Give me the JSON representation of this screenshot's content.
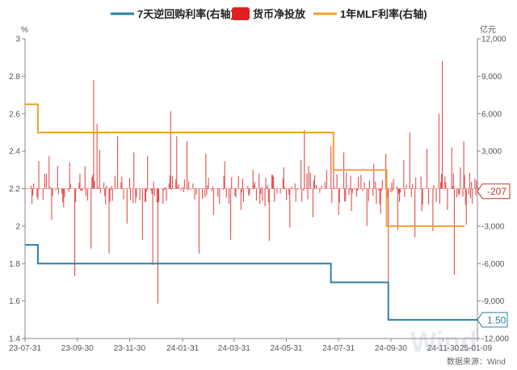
{
  "chart_data": {
    "type": "bar+line",
    "legend": [
      {
        "label": "7天逆回购利率(右轴)",
        "color": "#2e7fa8",
        "kind": "line"
      },
      {
        "label": "货币净投放",
        "color": "#e02020",
        "kind": "bar"
      },
      {
        "label": "1年MLF利率(右轴)",
        "color": "#f0a030",
        "kind": "line"
      }
    ],
    "left_axis": {
      "unit": "%",
      "ylim": [
        1.4,
        3.0
      ],
      "ticks": [
        "1.4",
        "1.6",
        "1.8",
        "2",
        "2.2",
        "2.4",
        "2.6",
        "2.8",
        "3"
      ]
    },
    "right_axis": {
      "unit": "亿元",
      "ylim": [
        -12000,
        12000
      ],
      "ticks": [
        "-12,000",
        "-9,000",
        "-6,000",
        "-3,000",
        "0",
        "3,000",
        "6,000",
        "9,000",
        "12,000"
      ]
    },
    "x_axis": {
      "start": "2023-07-31",
      "end": "2025-01-09",
      "tick_labels": [
        {
          "date": "2023-07-31",
          "label": "23-07-31"
        },
        {
          "date": "2023-09-30",
          "label": "23-09-30"
        },
        {
          "date": "2023-11-30",
          "label": "23-11-30"
        },
        {
          "date": "2024-01-31",
          "label": "24-01-31"
        },
        {
          "date": "2024-03-31",
          "label": "24-03-31"
        },
        {
          "date": "2024-05-31",
          "label": "24-05-31"
        },
        {
          "date": "2024-07-31",
          "label": "24-07-31"
        },
        {
          "date": "2024-09-30",
          "label": "24-09-30"
        },
        {
          "date": "2024-11-30",
          "label": "24-11-30"
        },
        {
          "date": "2025-01-09",
          "label": "25-01-09"
        }
      ]
    },
    "series": [
      {
        "name": "7天逆回购利率(右轴)",
        "axis": "left",
        "color": "#2e7fa8",
        "step_points": [
          {
            "date": "2023-07-31",
            "value": 1.9
          },
          {
            "date": "2023-08-15",
            "value": 1.8
          },
          {
            "date": "2024-07-22",
            "value": 1.7
          },
          {
            "date": "2024-09-27",
            "value": 1.5
          },
          {
            "date": "2025-01-09",
            "value": 1.5
          }
        ],
        "last_value_label": "1.50"
      },
      {
        "name": "1年MLF利率(右轴)",
        "axis": "left",
        "color": "#f0a030",
        "step_points": [
          {
            "date": "2023-07-31",
            "value": 2.65
          },
          {
            "date": "2023-08-15",
            "value": 2.5
          },
          {
            "date": "2024-07-25",
            "value": 2.3
          },
          {
            "date": "2024-09-25",
            "value": 2.0
          },
          {
            "date": "2024-12-25",
            "value": 2.0
          }
        ]
      },
      {
        "name": "货币净投放",
        "axis": "right",
        "color": "#e05050",
        "base_bars": [
          {
            "date": "2023-08-08",
            "value": -1200
          },
          {
            "date": "2023-08-16",
            "value": 2200
          },
          {
            "date": "2023-08-21",
            "value": -900
          },
          {
            "date": "2023-08-28",
            "value": 2600
          },
          {
            "date": "2023-08-31",
            "value": -2500
          },
          {
            "date": "2023-09-07",
            "value": 1800
          },
          {
            "date": "2023-09-14",
            "value": -1500
          },
          {
            "date": "2023-09-21",
            "value": 2100
          },
          {
            "date": "2023-09-27",
            "value": -7000
          },
          {
            "date": "2023-10-09",
            "value": 1800
          },
          {
            "date": "2023-10-16",
            "value": -4800
          },
          {
            "date": "2023-10-19",
            "value": 8700
          },
          {
            "date": "2023-10-23",
            "value": 5200
          },
          {
            "date": "2023-10-26",
            "value": 3100
          },
          {
            "date": "2023-11-06",
            "value": -5200
          },
          {
            "date": "2023-11-16",
            "value": 4200
          },
          {
            "date": "2023-11-27",
            "value": -2800
          },
          {
            "date": "2023-12-05",
            "value": 2900
          },
          {
            "date": "2023-12-15",
            "value": -4100
          },
          {
            "date": "2023-12-21",
            "value": 2600
          },
          {
            "date": "2023-12-27",
            "value": -6100
          },
          {
            "date": "2024-01-02",
            "value": -9200
          },
          {
            "date": "2024-01-17",
            "value": 6200
          },
          {
            "date": "2024-01-24",
            "value": 4200
          },
          {
            "date": "2024-02-05",
            "value": 3800
          },
          {
            "date": "2024-02-19",
            "value": -5200
          },
          {
            "date": "2024-02-27",
            "value": 2800
          },
          {
            "date": "2024-03-07",
            "value": -2100
          },
          {
            "date": "2024-03-20",
            "value": 2200
          },
          {
            "date": "2024-03-27",
            "value": -4100
          },
          {
            "date": "2024-04-08",
            "value": -1700
          },
          {
            "date": "2024-04-22",
            "value": 1500
          },
          {
            "date": "2024-04-30",
            "value": -1200
          },
          {
            "date": "2024-05-06",
            "value": -1400
          },
          {
            "date": "2024-05-11",
            "value": -4200
          },
          {
            "date": "2024-05-28",
            "value": 1700
          },
          {
            "date": "2024-06-04",
            "value": -3100
          },
          {
            "date": "2024-06-17",
            "value": 2300
          },
          {
            "date": "2024-06-21",
            "value": 4700
          },
          {
            "date": "2024-06-26",
            "value": 1800
          },
          {
            "date": "2024-07-01",
            "value": -2300
          },
          {
            "date": "2024-07-17",
            "value": 1500
          },
          {
            "date": "2024-07-22",
            "value": 3400
          },
          {
            "date": "2024-07-25",
            "value": 2300
          },
          {
            "date": "2024-07-31",
            "value": -2100
          },
          {
            "date": "2024-08-06",
            "value": 2900
          },
          {
            "date": "2024-08-09",
            "value": 1300
          },
          {
            "date": "2024-08-15",
            "value": -1800
          },
          {
            "date": "2024-08-26",
            "value": 1100
          },
          {
            "date": "2024-09-02",
            "value": -3000
          },
          {
            "date": "2024-09-10",
            "value": 2000
          },
          {
            "date": "2024-09-18",
            "value": -2000
          },
          {
            "date": "2024-09-24",
            "value": 2800
          },
          {
            "date": "2024-09-27",
            "value": -9700
          },
          {
            "date": "2024-10-08",
            "value": -3300
          },
          {
            "date": "2024-10-15",
            "value": 2300
          },
          {
            "date": "2024-10-22",
            "value": 4500
          },
          {
            "date": "2024-10-28",
            "value": -3900
          },
          {
            "date": "2024-11-05",
            "value": -1800
          },
          {
            "date": "2024-11-11",
            "value": 3200
          },
          {
            "date": "2024-11-18",
            "value": -3400
          },
          {
            "date": "2024-11-25",
            "value": 6000
          },
          {
            "date": "2024-11-29",
            "value": 10200
          },
          {
            "date": "2024-12-05",
            "value": -1700
          },
          {
            "date": "2024-12-10",
            "value": 3300
          },
          {
            "date": "2024-12-13",
            "value": -6900
          },
          {
            "date": "2024-12-20",
            "value": 1700
          },
          {
            "date": "2024-12-24",
            "value": 3800
          },
          {
            "date": "2024-12-27",
            "value": -2900
          },
          {
            "date": "2025-01-03",
            "value": -1200
          },
          {
            "date": "2025-01-09",
            "value": -207
          }
        ],
        "last_value_label": "-207"
      }
    ]
  },
  "source_text": "数据来源：Wind",
  "watermark_text": "Wind"
}
